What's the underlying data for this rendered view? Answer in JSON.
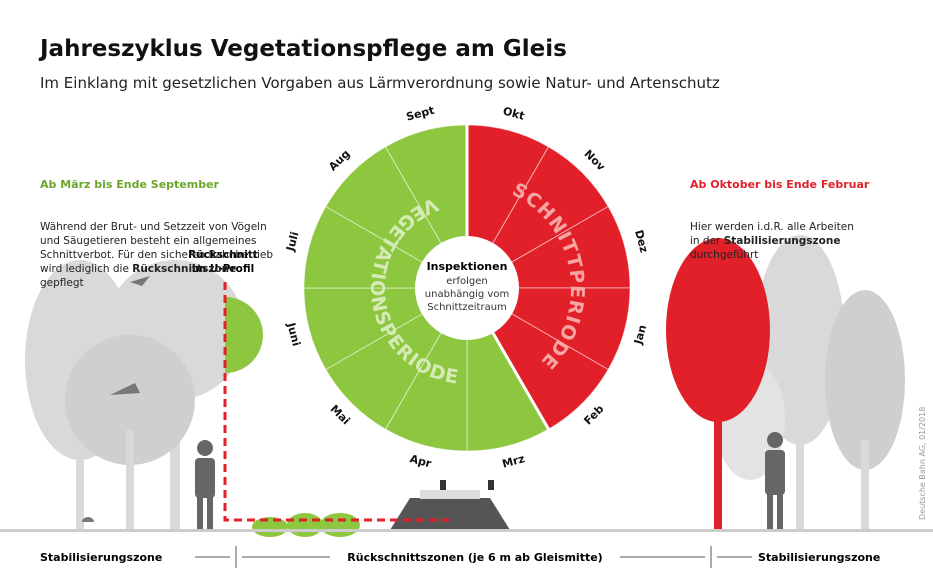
{
  "header": {
    "title": "Jahreszyklus Vegetationspflege am Gleis",
    "subtitle": "Im Einklang mit gesetzlichen Vorgaben aus Lärmverordnung sowie Natur- und Artenschutz"
  },
  "left_info": {
    "heading": "Ab März bis Ende September",
    "lines": [
      [
        "Während der Brut- und Setzzeit von Vögeln"
      ],
      [
        "und Säugetieren besteht ein allgemeines"
      ],
      [
        "Schnittverbot. Für den sicheren Bahnbetrieb"
      ],
      [
        "wird lediglich die ",
        "Rückschnittszone"
      ],
      [
        "gepflegt"
      ]
    ]
  },
  "right_info": {
    "heading": "Ab Oktober bis Ende Februar",
    "lines": [
      [
        "Hier werden i.d.R. alle Arbeiten"
      ],
      [
        "in der ",
        "Stabilisierungszone"
      ],
      [
        "durchgeführt"
      ]
    ]
  },
  "wheel": {
    "months": [
      "Okt",
      "Nov",
      "Dez",
      "Jan",
      "Feb",
      "Mrz",
      "Apr",
      "Mai",
      "Juni",
      "Juli",
      "Aug",
      "Sept"
    ],
    "cut_label": "SCHNITTPERIODE",
    "vegetation_label": "VEGETATIONSPERIODE",
    "center": {
      "heading": "Inspektionen",
      "lines": [
        "erfolgen",
        "unabhängig vom",
        "Schnittzeitraum"
      ]
    }
  },
  "profile_label": [
    "Rückschnitt",
    "im U-Profil"
  ],
  "zones": {
    "left": "Stabilisierungszone",
    "middle": "Rückschnittszonen (je 6 m ab Gleismitte)",
    "right": "Stabilisierungszone"
  },
  "credit": "Deutsche Bahn AG, 01/2018"
}
